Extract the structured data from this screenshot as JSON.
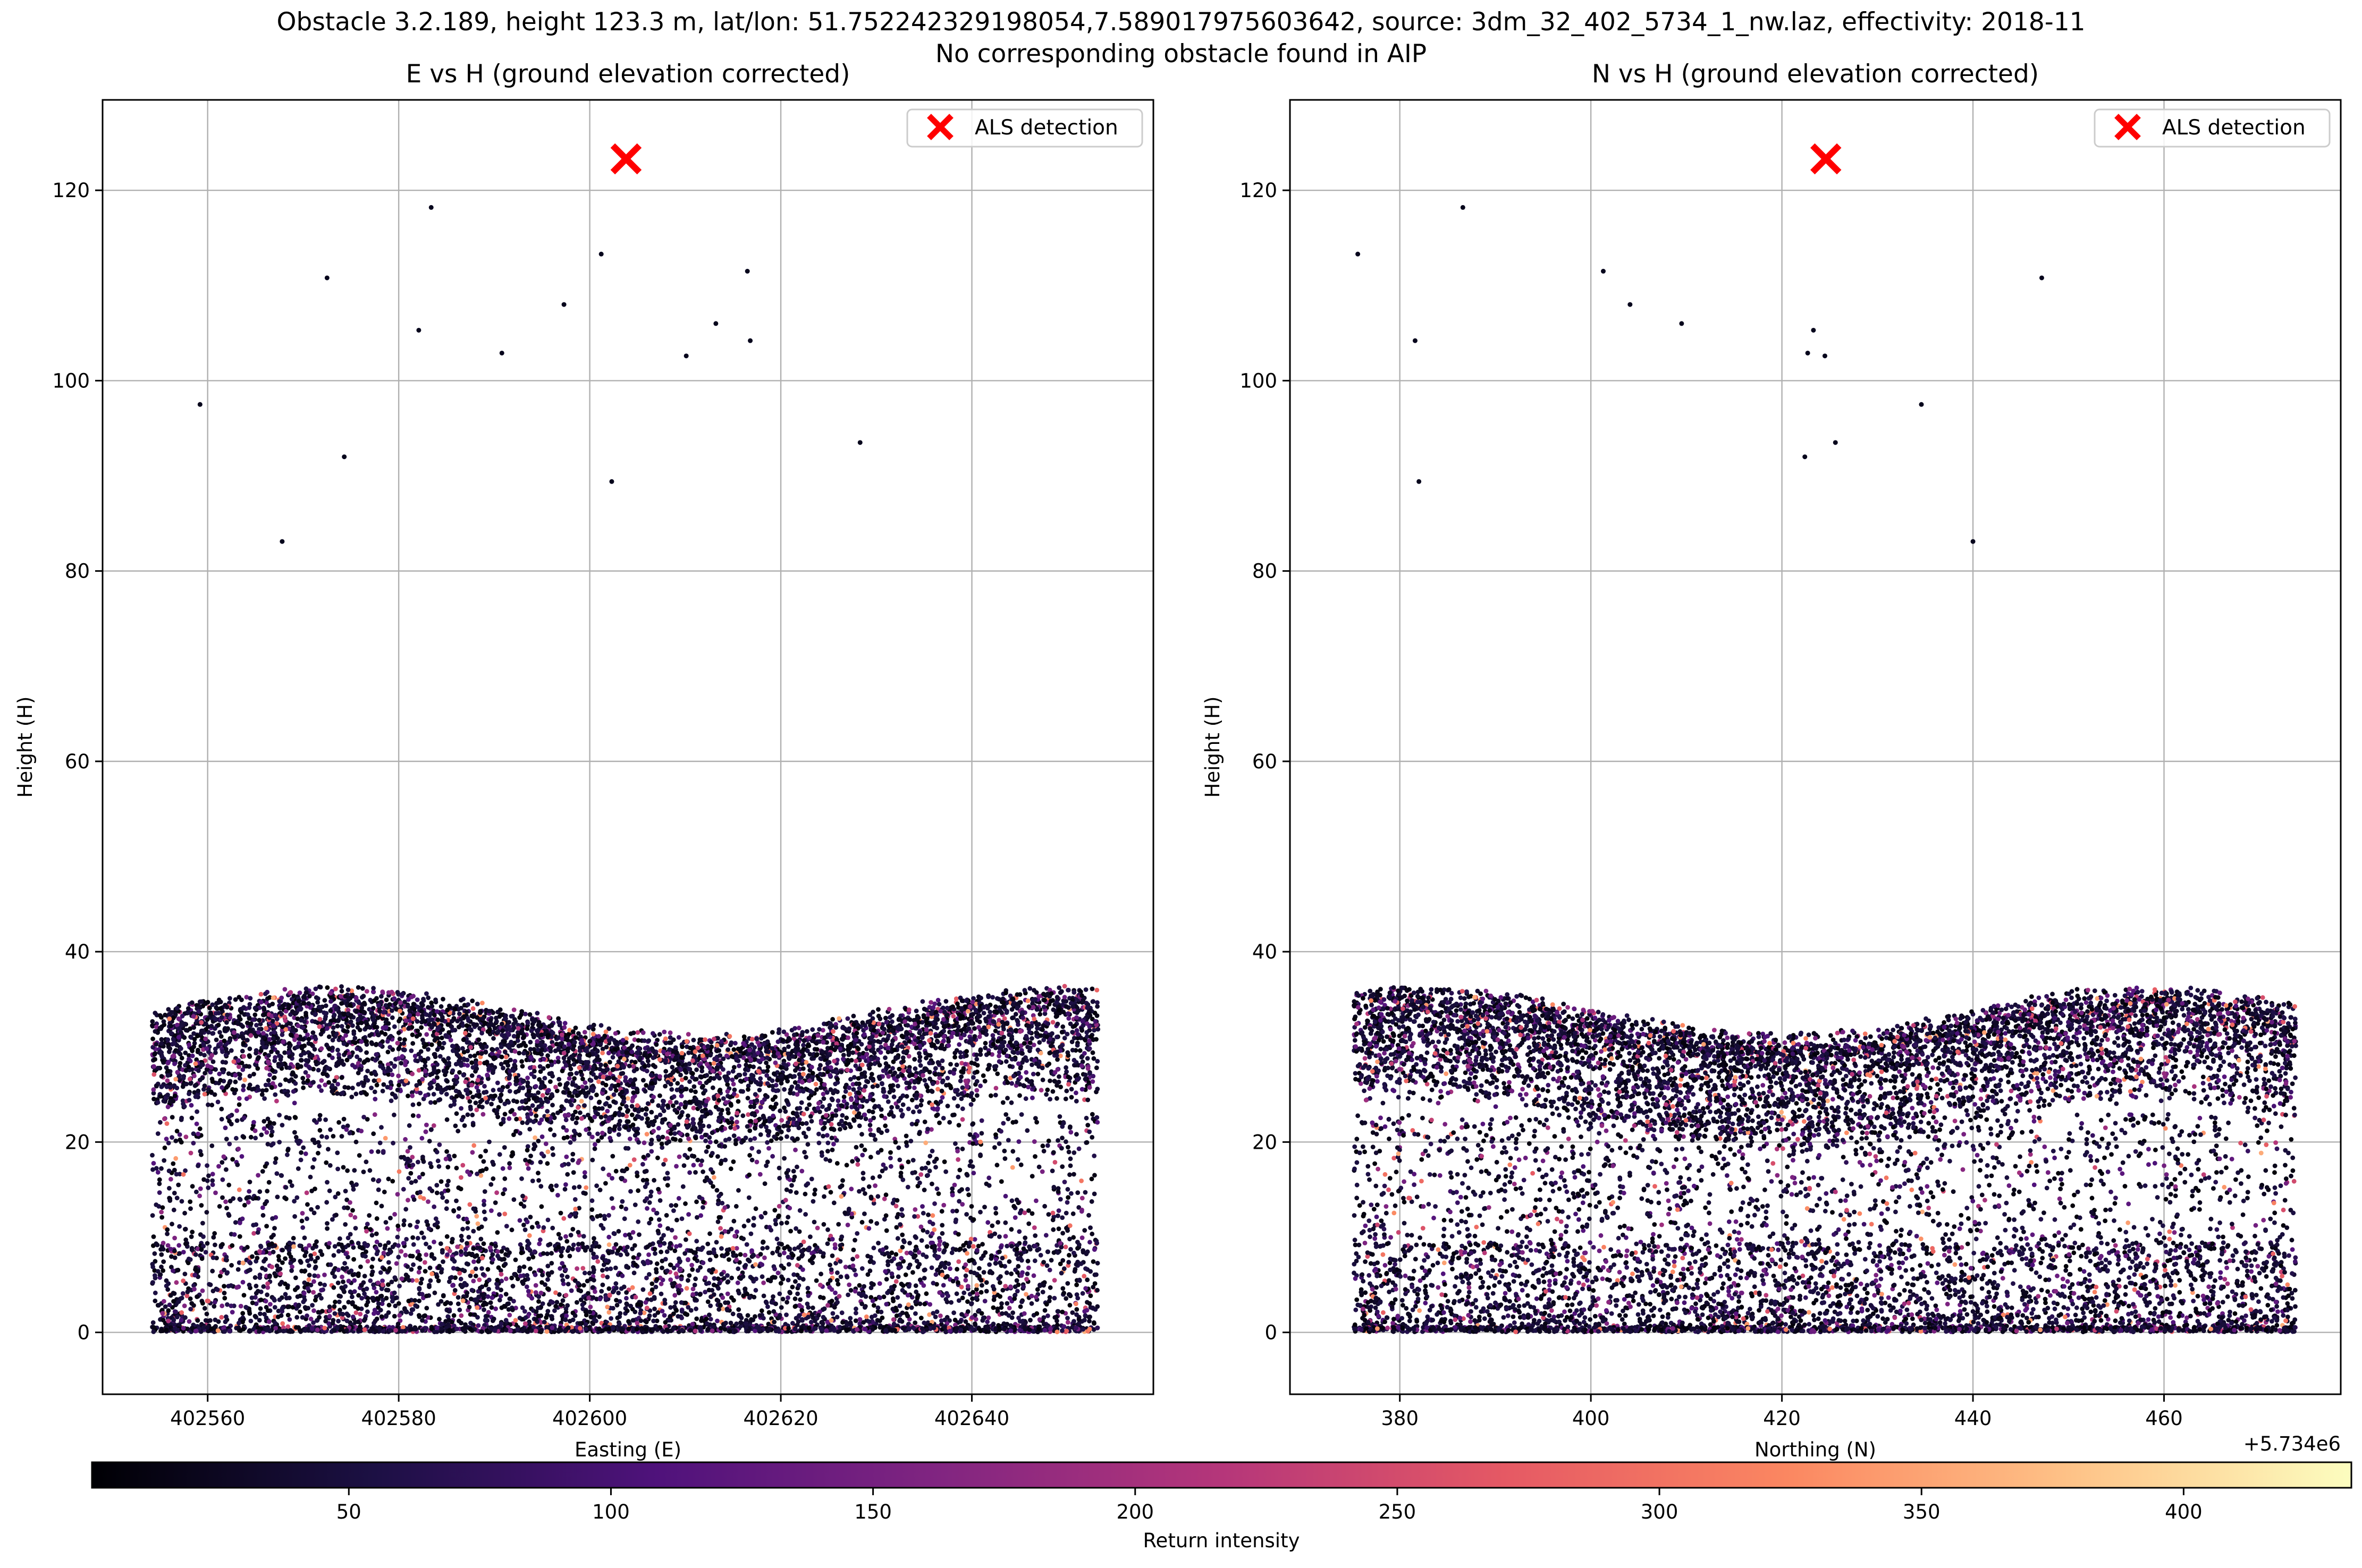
{
  "suptitle_line1": "Obstacle 3.2.189, height 123.3 m, lat/lon: 51.752242329198054,7.589017975603642, source: 3dm_32_402_5734_1_nw.laz, effectivity: 2018-11",
  "suptitle_line2": "No corresponding obstacle found in AIP",
  "chart_data": [
    {
      "type": "scatter",
      "title": "E vs H (ground elevation corrected)",
      "xlabel": "Easting (E)",
      "ylabel": "Height (H)",
      "xlim": [
        402549,
        402659
      ],
      "ylim": [
        -6.5,
        129.5
      ],
      "xticks": [
        402560,
        402580,
        402600,
        402620,
        402640
      ],
      "yticks": [
        0,
        20,
        40,
        60,
        80,
        100,
        120
      ],
      "grid": true,
      "legend": {
        "placement": "upper right",
        "entries": [
          "ALS detection"
        ]
      },
      "als_detection": {
        "x": 402603.8,
        "y": 123.3,
        "marker": "x",
        "color": "#ff0000"
      },
      "isolated_points": [
        {
          "x": 402559.2,
          "y": 97.5
        },
        {
          "x": 402567.8,
          "y": 83.1
        },
        {
          "x": 402572.5,
          "y": 110.8
        },
        {
          "x": 402574.3,
          "y": 92.0
        },
        {
          "x": 402582.1,
          "y": 105.3
        },
        {
          "x": 402583.4,
          "y": 118.2
        },
        {
          "x": 402590.8,
          "y": 102.9
        },
        {
          "x": 402597.3,
          "y": 108.0
        },
        {
          "x": 402601.2,
          "y": 113.3
        },
        {
          "x": 402602.3,
          "y": 89.4
        },
        {
          "x": 402610.1,
          "y": 102.6
        },
        {
          "x": 402613.2,
          "y": 106.0
        },
        {
          "x": 402616.5,
          "y": 111.5
        },
        {
          "x": 402616.8,
          "y": 104.2
        },
        {
          "x": 402628.3,
          "y": 93.5
        }
      ],
      "point_cloud": {
        "x_range": [
          402554.2,
          402653.2
        ],
        "canopy_height_range": [
          22,
          36
        ],
        "understory_height_range": [
          0,
          22
        ],
        "ground_height": 0.3
      }
    },
    {
      "type": "scatter",
      "title": "N vs H (ground elevation corrected)",
      "xlabel": "Northing (N)",
      "ylabel": "Height (H)",
      "axis_offset_label": "+5.734e6",
      "xlim": [
        368.5,
        478.5
      ],
      "ylim": [
        -6.5,
        129.5
      ],
      "xticks": [
        380,
        400,
        420,
        440,
        460
      ],
      "yticks": [
        0,
        20,
        40,
        60,
        80,
        100,
        120
      ],
      "grid": true,
      "legend": {
        "placement": "upper right",
        "entries": [
          "ALS detection"
        ]
      },
      "als_detection": {
        "x": 424.6,
        "y": 123.3,
        "marker": "x",
        "color": "#ff0000"
      },
      "isolated_points": [
        {
          "x": 375.6,
          "y": 113.3
        },
        {
          "x": 381.6,
          "y": 104.2
        },
        {
          "x": 382.0,
          "y": 89.4
        },
        {
          "x": 386.6,
          "y": 118.2
        },
        {
          "x": 401.3,
          "y": 111.5
        },
        {
          "x": 404.1,
          "y": 108.0
        },
        {
          "x": 409.5,
          "y": 106.0
        },
        {
          "x": 422.4,
          "y": 92.0
        },
        {
          "x": 422.7,
          "y": 102.9
        },
        {
          "x": 423.3,
          "y": 105.3
        },
        {
          "x": 424.5,
          "y": 102.6
        },
        {
          "x": 425.6,
          "y": 93.5
        },
        {
          "x": 434.6,
          "y": 97.5
        },
        {
          "x": 440.0,
          "y": 83.1
        },
        {
          "x": 447.2,
          "y": 110.8
        }
      ],
      "point_cloud": {
        "x_range": [
          375.2,
          473.8
        ],
        "canopy_height_range": [
          22,
          36
        ],
        "understory_height_range": [
          0,
          22
        ],
        "ground_height": 0.3
      }
    }
  ],
  "colorbar": {
    "label": "Return intensity",
    "colormap": "magma",
    "range": [
      1,
      432
    ],
    "ticks": [
      50,
      100,
      150,
      200,
      250,
      300,
      350,
      400
    ],
    "colors": [
      "#000004",
      "#1c1044",
      "#4f127b",
      "#812581",
      "#b5367a",
      "#e55964",
      "#fb8761",
      "#fec287",
      "#fcfdbf"
    ]
  }
}
